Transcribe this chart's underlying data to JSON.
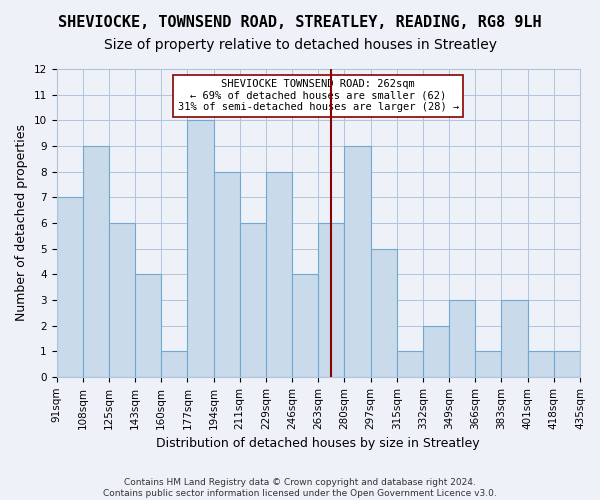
{
  "title1": "SHEVIOCKE, TOWNSEND ROAD, STREATLEY, READING, RG8 9LH",
  "title2": "Size of property relative to detached houses in Streatley",
  "xlabel": "Distribution of detached houses by size in Streatley",
  "ylabel": "Number of detached properties",
  "footnote": "Contains HM Land Registry data © Crown copyright and database right 2024.\nContains public sector information licensed under the Open Government Licence v3.0.",
  "bin_labels": [
    "91sqm",
    "108sqm",
    "125sqm",
    "143sqm",
    "160sqm",
    "177sqm",
    "194sqm",
    "211sqm",
    "229sqm",
    "246sqm",
    "263sqm",
    "280sqm",
    "297sqm",
    "315sqm",
    "332sqm",
    "349sqm",
    "366sqm",
    "383sqm",
    "401sqm",
    "418sqm",
    "435sqm"
  ],
  "bar_heights": [
    7,
    9,
    6,
    4,
    1,
    10,
    8,
    6,
    8,
    4,
    6,
    9,
    5,
    1,
    2,
    3,
    1,
    3,
    1,
    1
  ],
  "bar_color": "#c9daea",
  "bar_edge_color": "#6fa8d0",
  "vline_x_index": 10,
  "vline_color": "#8b0000",
  "annotation_title": "SHEVIOCKE TOWNSEND ROAD: 262sqm",
  "annotation_line1": "← 69% of detached houses are smaller (62)",
  "annotation_line2": "31% of semi-detached houses are larger (28) →",
  "annotation_box_color": "#ffffff",
  "annotation_box_edge": "#8b0000",
  "ylim": [
    0,
    12
  ],
  "yticks": [
    0,
    1,
    2,
    3,
    4,
    5,
    6,
    7,
    8,
    9,
    10,
    11,
    12
  ],
  "grid_color": "#b0c4de",
  "background_color": "#eef2f8",
  "title_fontsize": 11,
  "subtitle_fontsize": 10,
  "axis_label_fontsize": 9,
  "tick_fontsize": 7.5
}
